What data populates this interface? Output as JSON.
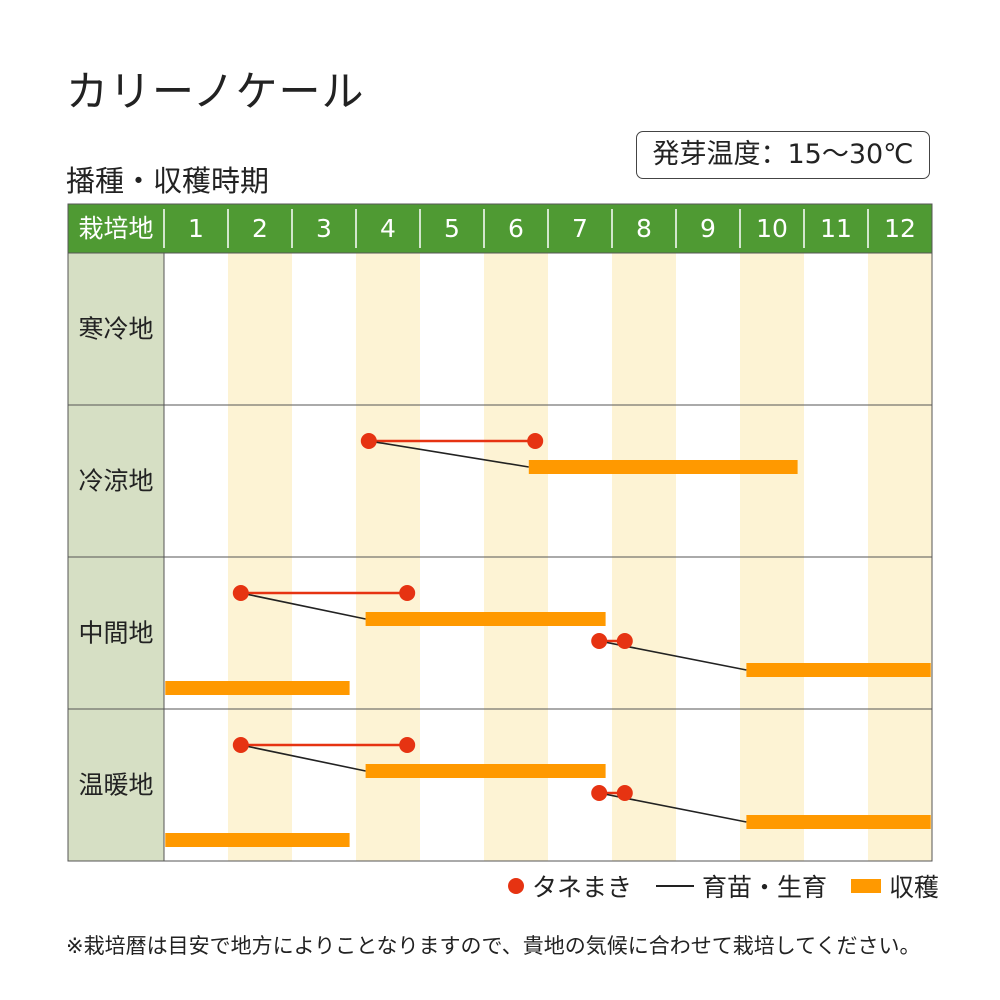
{
  "title": "カリーノケール",
  "subtitle": "播種・収穫時期",
  "temperature": "発芽温度：15～30℃",
  "note": "※栽培暦は目安で地方によりことなりますので、貴地の気候に合わせて栽培してください。",
  "legend": {
    "sowing": "タネまき",
    "growing": "育苗・生育",
    "harvest": "収穫"
  },
  "colors": {
    "header_green": "#4f9a33",
    "region_bg": "#d6dfc4",
    "even_month_shade": "#fdf3d4",
    "sowing_red": "#e63312",
    "harvest_orange": "#ff9900",
    "growing_line": "#222222"
  },
  "chart_data": {
    "type": "gantt",
    "header_label": "栽培地",
    "months": [
      "1",
      "2",
      "3",
      "4",
      "5",
      "6",
      "7",
      "8",
      "9",
      "10",
      "11",
      "12"
    ],
    "regions": [
      {
        "name": "寒冷地",
        "schedules": []
      },
      {
        "name": "冷涼地",
        "schedules": [
          {
            "sow": [
              4.2,
              6.8
            ],
            "harvest": [
              6.7,
              10.9
            ]
          }
        ]
      },
      {
        "name": "中間地",
        "schedules": [
          {
            "sow": [
              2.2,
              4.8
            ],
            "harvest": [
              4.15,
              7.9
            ]
          },
          {
            "sow": [
              7.8,
              8.2
            ],
            "harvest": [
              10.1,
              12.98
            ]
          },
          {
            "sow": null,
            "harvest": [
              1.02,
              3.9
            ]
          }
        ]
      },
      {
        "name": "温暖地",
        "schedules": [
          {
            "sow": [
              2.2,
              4.8
            ],
            "harvest": [
              4.15,
              7.9
            ]
          },
          {
            "sow": [
              7.8,
              8.2
            ],
            "harvest": [
              10.1,
              12.98
            ]
          },
          {
            "sow": null,
            "harvest": [
              1.02,
              3.9
            ]
          }
        ]
      }
    ]
  }
}
